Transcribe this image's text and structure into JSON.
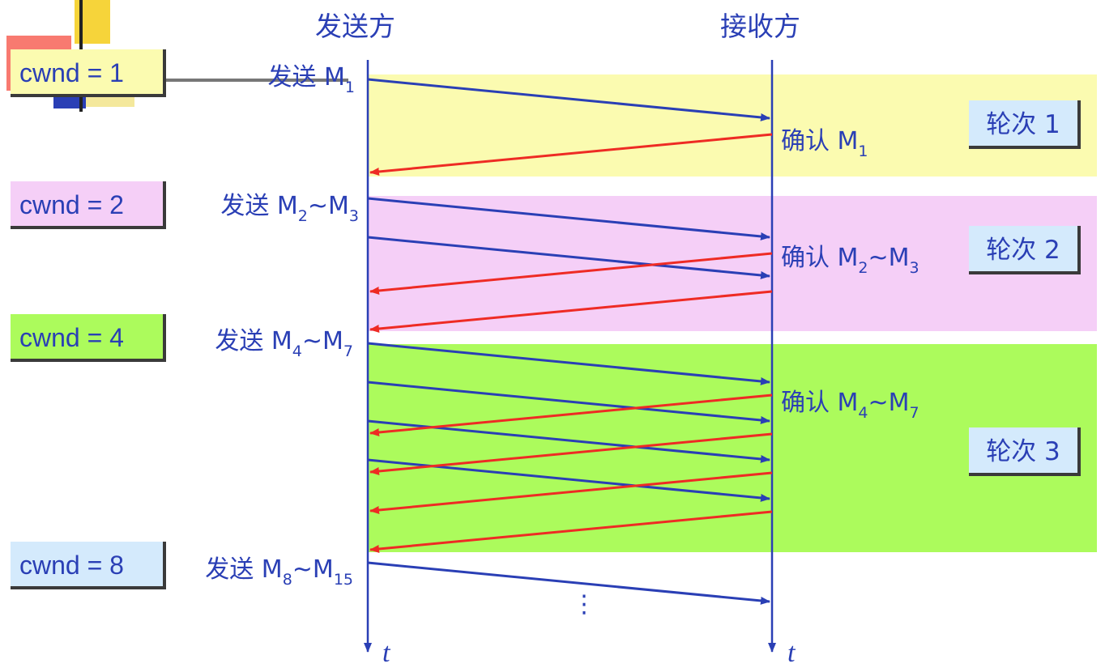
{
  "headings": {
    "sender": "发送方",
    "receiver": "接收方"
  },
  "cwnd_labels": [
    "cwnd = 1",
    "cwnd = 2",
    "cwnd = 4",
    "cwnd = 8"
  ],
  "send_labels": [
    {
      "text": "发送 M",
      "sub1": "1",
      "mid": "",
      "sub2": ""
    },
    {
      "text": "发送 M",
      "sub1": "2",
      "mid": "~M",
      "sub2": "3"
    },
    {
      "text": "发送 M",
      "sub1": "4",
      "mid": "~M",
      "sub2": "7"
    },
    {
      "text": "发送 M",
      "sub1": "8",
      "mid": "~M",
      "sub2": "15"
    }
  ],
  "ack_labels": [
    {
      "text": "确认 M",
      "sub1": "1",
      "mid": "",
      "sub2": ""
    },
    {
      "text": "确认 M",
      "sub1": "2",
      "mid": "~M",
      "sub2": "3"
    },
    {
      "text": "确认 M",
      "sub1": "4",
      "mid": "~M",
      "sub2": "7"
    }
  ],
  "round_labels": [
    "轮次 1",
    "轮次 2",
    "轮次 3"
  ],
  "time_axis_label": "t",
  "ellipsis": "⋮",
  "colors": {
    "round1_band": "#fbfbb0",
    "round2_band": "#f5cff7",
    "round3_band": "#acfb5c",
    "cwnd1_box": "#fbfbb0",
    "cwnd2_box": "#f5cff7",
    "cwnd4_box": "#acfb5c",
    "cwnd8_box": "#d4eafc",
    "data_arrow": "#2a3fb5",
    "ack_arrow": "#ee2b24",
    "timeline": "#2a3fb5"
  }
}
